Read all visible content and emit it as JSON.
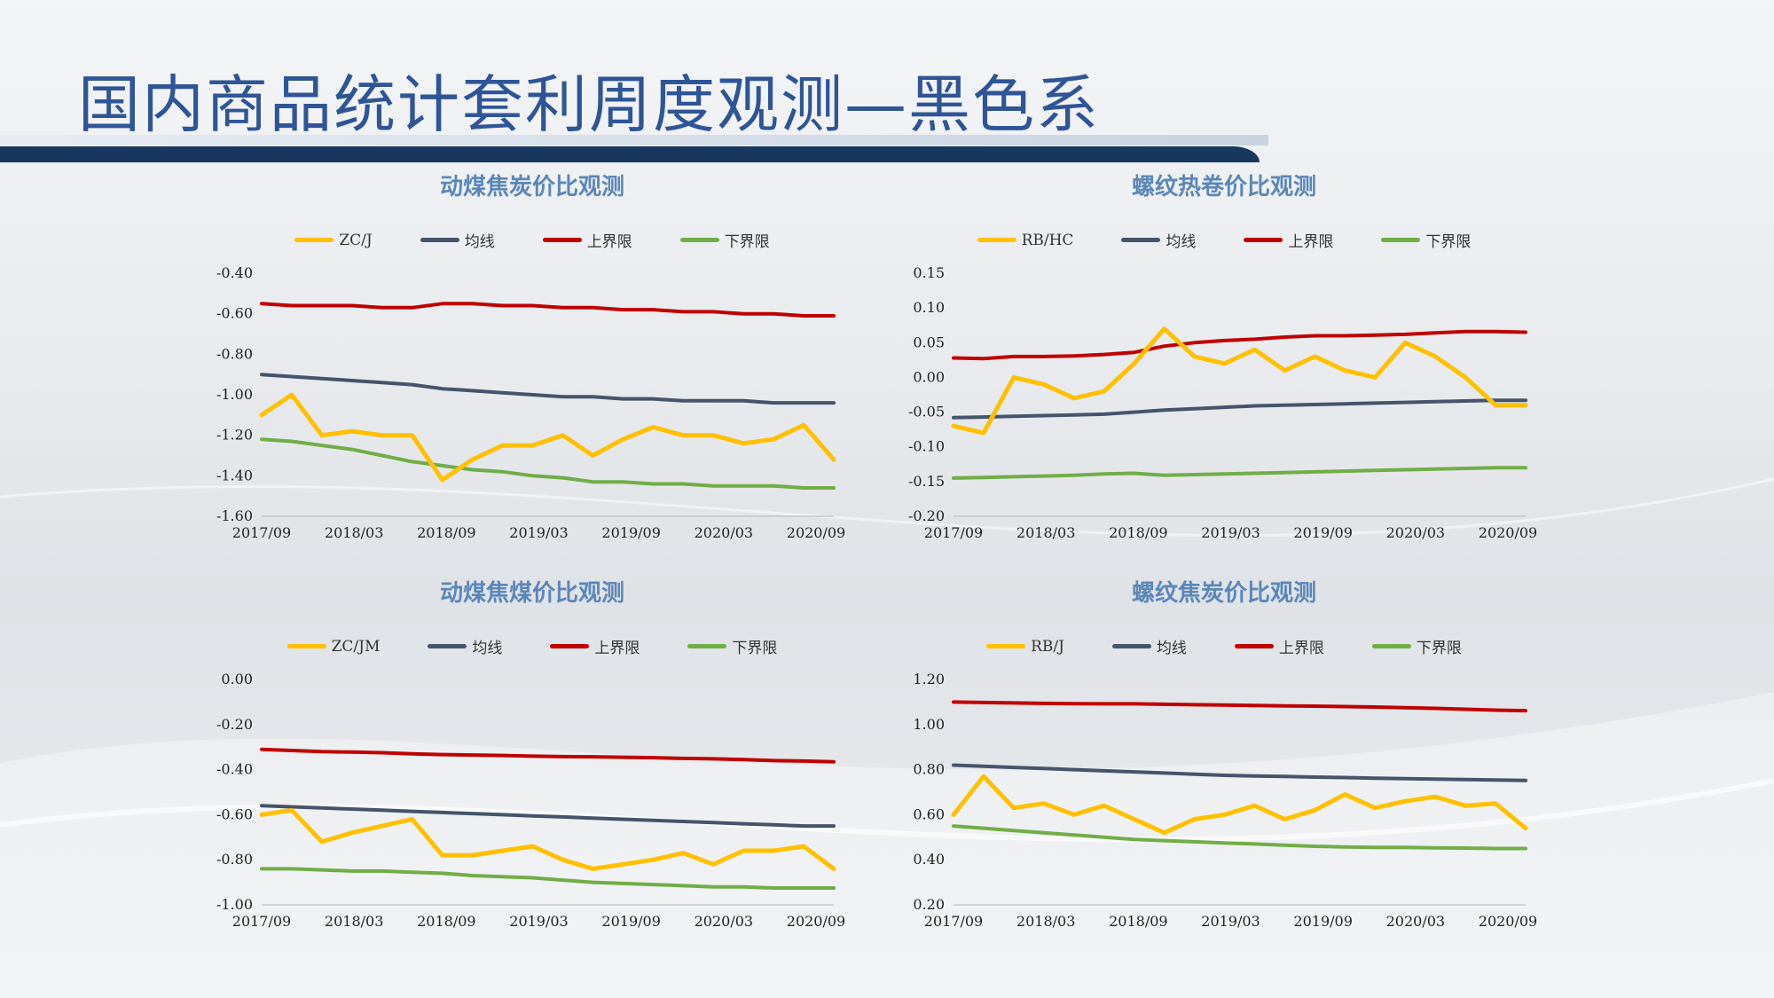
{
  "page": {
    "title": "国内商品统计套利周度观测—黑色系"
  },
  "legend_colors": {
    "ratio": "#ffc000",
    "mean": "#44546a",
    "upper": "#c00000",
    "lower": "#70ad47"
  },
  "charts": [
    {
      "title": "动煤焦炭价比观测",
      "legend": [
        "ZC/J",
        "均线",
        "上界限",
        "下界限"
      ],
      "xticks": [
        "2017/09",
        "2018/03",
        "2018/09",
        "2019/03",
        "2019/09",
        "2020/03",
        "2020/09"
      ],
      "yticks": [
        "-0.40",
        "-0.60",
        "-0.80",
        "-1.00",
        "-1.20",
        "-1.40",
        "-1.60"
      ]
    },
    {
      "title": "螺纹热卷价比观测",
      "legend": [
        "RB/HC",
        "均线",
        "上界限",
        "下界限"
      ],
      "xticks": [
        "2017/09",
        "2018/03",
        "2018/09",
        "2019/03",
        "2019/09",
        "2020/03",
        "2020/09"
      ],
      "yticks": [
        "0.15",
        "0.10",
        "0.05",
        "0.00",
        "-0.05",
        "-0.10",
        "-0.15",
        "-0.20"
      ]
    },
    {
      "title": "动煤焦煤价比观测",
      "legend": [
        "ZC/JM",
        "均线",
        "上界限",
        "下界限"
      ],
      "xticks": [
        "2017/09",
        "2018/03",
        "2018/09",
        "2019/03",
        "2019/09",
        "2020/03",
        "2020/09"
      ],
      "yticks": [
        "0.00",
        "-0.20",
        "-0.40",
        "-0.60",
        "-0.80",
        "-1.00"
      ]
    },
    {
      "title": "螺纹焦炭价比观测",
      "legend": [
        "RB/J",
        "均线",
        "上界限",
        "下界限"
      ],
      "xticks": [
        "2017/09",
        "2018/03",
        "2018/09",
        "2019/03",
        "2019/09",
        "2020/03",
        "2020/09"
      ],
      "yticks": [
        "1.20",
        "1.00",
        "0.80",
        "0.60",
        "0.40",
        "0.20"
      ]
    }
  ],
  "chart_data": [
    {
      "type": "line",
      "title": "动煤焦炭价比观测",
      "x": [
        "2017/09",
        "2017/11",
        "2018/01",
        "2018/03",
        "2018/05",
        "2018/07",
        "2018/09",
        "2018/11",
        "2019/01",
        "2019/03",
        "2019/05",
        "2019/07",
        "2019/09",
        "2019/11",
        "2020/01",
        "2020/03",
        "2020/05",
        "2020/07",
        "2020/09",
        "2020/10"
      ],
      "ylim": [
        -1.6,
        -0.4
      ],
      "series": [
        {
          "name": "ZC/J",
          "values": [
            -1.1,
            -1.0,
            -1.2,
            -1.18,
            -1.2,
            -1.2,
            -1.42,
            -1.32,
            -1.25,
            -1.25,
            -1.2,
            -1.3,
            -1.22,
            -1.16,
            -1.2,
            -1.2,
            -1.24,
            -1.22,
            -1.15,
            -1.32
          ]
        },
        {
          "name": "均线",
          "values": [
            -0.9,
            -0.91,
            -0.92,
            -0.93,
            -0.94,
            -0.95,
            -0.97,
            -0.98,
            -0.99,
            -1.0,
            -1.01,
            -1.01,
            -1.02,
            -1.02,
            -1.03,
            -1.03,
            -1.03,
            -1.04,
            -1.04,
            -1.04
          ]
        },
        {
          "name": "上界限",
          "values": [
            -0.55,
            -0.56,
            -0.56,
            -0.56,
            -0.57,
            -0.57,
            -0.55,
            -0.55,
            -0.56,
            -0.56,
            -0.57,
            -0.57,
            -0.58,
            -0.58,
            -0.59,
            -0.59,
            -0.6,
            -0.6,
            -0.61,
            -0.61
          ]
        },
        {
          "name": "下界限",
          "values": [
            -1.22,
            -1.23,
            -1.25,
            -1.27,
            -1.3,
            -1.33,
            -1.35,
            -1.37,
            -1.38,
            -1.4,
            -1.41,
            -1.43,
            -1.43,
            -1.44,
            -1.44,
            -1.45,
            -1.45,
            -1.45,
            -1.46,
            -1.46
          ]
        }
      ]
    },
    {
      "type": "line",
      "title": "螺纹热卷价比观测",
      "x": [
        "2017/09",
        "2017/11",
        "2018/01",
        "2018/03",
        "2018/05",
        "2018/07",
        "2018/09",
        "2018/11",
        "2019/01",
        "2019/03",
        "2019/05",
        "2019/07",
        "2019/09",
        "2019/11",
        "2020/01",
        "2020/03",
        "2020/05",
        "2020/07",
        "2020/09",
        "2020/10"
      ],
      "ylim": [
        -0.2,
        0.15
      ],
      "series": [
        {
          "name": "RB/HC",
          "values": [
            -0.07,
            -0.08,
            0.0,
            -0.01,
            -0.03,
            -0.02,
            0.02,
            0.07,
            0.03,
            0.02,
            0.04,
            0.01,
            0.03,
            0.01,
            0.0,
            0.05,
            0.03,
            0.0,
            -0.04,
            -0.04
          ]
        },
        {
          "name": "均线",
          "values": [
            -0.058,
            -0.057,
            -0.056,
            -0.055,
            -0.054,
            -0.053,
            -0.05,
            -0.047,
            -0.045,
            -0.043,
            -0.041,
            -0.04,
            -0.039,
            -0.038,
            -0.037,
            -0.036,
            -0.035,
            -0.034,
            -0.033,
            -0.033
          ]
        },
        {
          "name": "上界限",
          "values": [
            0.028,
            0.027,
            0.03,
            0.03,
            0.031,
            0.033,
            0.036,
            0.045,
            0.05,
            0.053,
            0.055,
            0.058,
            0.06,
            0.06,
            0.061,
            0.062,
            0.064,
            0.066,
            0.066,
            0.065
          ]
        },
        {
          "name": "下界限",
          "values": [
            -0.145,
            -0.144,
            -0.143,
            -0.142,
            -0.141,
            -0.139,
            -0.138,
            -0.141,
            -0.14,
            -0.139,
            -0.138,
            -0.137,
            -0.136,
            -0.135,
            -0.134,
            -0.133,
            -0.132,
            -0.131,
            -0.13,
            -0.13
          ]
        }
      ]
    },
    {
      "type": "line",
      "title": "动煤焦煤价比观测",
      "x": [
        "2017/09",
        "2017/11",
        "2018/01",
        "2018/03",
        "2018/05",
        "2018/07",
        "2018/09",
        "2018/11",
        "2019/01",
        "2019/03",
        "2019/05",
        "2019/07",
        "2019/09",
        "2019/11",
        "2020/01",
        "2020/03",
        "2020/05",
        "2020/07",
        "2020/09",
        "2020/10"
      ],
      "ylim": [
        -1.0,
        0.0
      ],
      "series": [
        {
          "name": "ZC/JM",
          "values": [
            -0.6,
            -0.58,
            -0.72,
            -0.68,
            -0.65,
            -0.62,
            -0.78,
            -0.78,
            -0.76,
            -0.74,
            -0.8,
            -0.84,
            -0.82,
            -0.8,
            -0.77,
            -0.82,
            -0.76,
            -0.76,
            -0.74,
            -0.84
          ]
        },
        {
          "name": "均线",
          "values": [
            -0.56,
            -0.565,
            -0.57,
            -0.575,
            -0.58,
            -0.585,
            -0.59,
            -0.595,
            -0.6,
            -0.605,
            -0.61,
            -0.615,
            -0.62,
            -0.625,
            -0.63,
            -0.635,
            -0.64,
            -0.645,
            -0.65,
            -0.65
          ]
        },
        {
          "name": "上界限",
          "values": [
            -0.31,
            -0.315,
            -0.32,
            -0.322,
            -0.325,
            -0.33,
            -0.333,
            -0.335,
            -0.337,
            -0.34,
            -0.342,
            -0.343,
            -0.345,
            -0.347,
            -0.35,
            -0.352,
            -0.355,
            -0.36,
            -0.362,
            -0.365
          ]
        },
        {
          "name": "下界限",
          "values": [
            -0.84,
            -0.84,
            -0.845,
            -0.85,
            -0.85,
            -0.855,
            -0.86,
            -0.87,
            -0.875,
            -0.88,
            -0.89,
            -0.9,
            -0.905,
            -0.91,
            -0.915,
            -0.92,
            -0.92,
            -0.925,
            -0.925,
            -0.925
          ]
        }
      ]
    },
    {
      "type": "line",
      "title": "螺纹焦炭价比观测",
      "x": [
        "2017/09",
        "2017/11",
        "2018/01",
        "2018/03",
        "2018/05",
        "2018/07",
        "2018/09",
        "2018/11",
        "2019/01",
        "2019/03",
        "2019/05",
        "2019/07",
        "2019/09",
        "2019/11",
        "2020/01",
        "2020/03",
        "2020/05",
        "2020/07",
        "2020/09",
        "2020/10"
      ],
      "ylim": [
        0.2,
        1.2
      ],
      "series": [
        {
          "name": "RB/J",
          "values": [
            0.6,
            0.77,
            0.63,
            0.65,
            0.6,
            0.64,
            0.58,
            0.52,
            0.58,
            0.6,
            0.64,
            0.58,
            0.62,
            0.69,
            0.63,
            0.66,
            0.68,
            0.64,
            0.65,
            0.54
          ]
        },
        {
          "name": "均线",
          "values": [
            0.82,
            0.815,
            0.81,
            0.805,
            0.8,
            0.795,
            0.79,
            0.785,
            0.78,
            0.775,
            0.772,
            0.77,
            0.767,
            0.765,
            0.762,
            0.76,
            0.758,
            0.756,
            0.754,
            0.752
          ]
        },
        {
          "name": "上界限",
          "values": [
            1.1,
            1.098,
            1.096,
            1.094,
            1.093,
            1.092,
            1.092,
            1.09,
            1.088,
            1.087,
            1.085,
            1.083,
            1.082,
            1.08,
            1.078,
            1.075,
            1.072,
            1.068,
            1.064,
            1.062
          ]
        },
        {
          "name": "下界限",
          "values": [
            0.55,
            0.54,
            0.53,
            0.52,
            0.51,
            0.5,
            0.49,
            0.485,
            0.48,
            0.475,
            0.47,
            0.465,
            0.46,
            0.457,
            0.455,
            0.455,
            0.453,
            0.452,
            0.45,
            0.45
          ]
        }
      ]
    }
  ]
}
